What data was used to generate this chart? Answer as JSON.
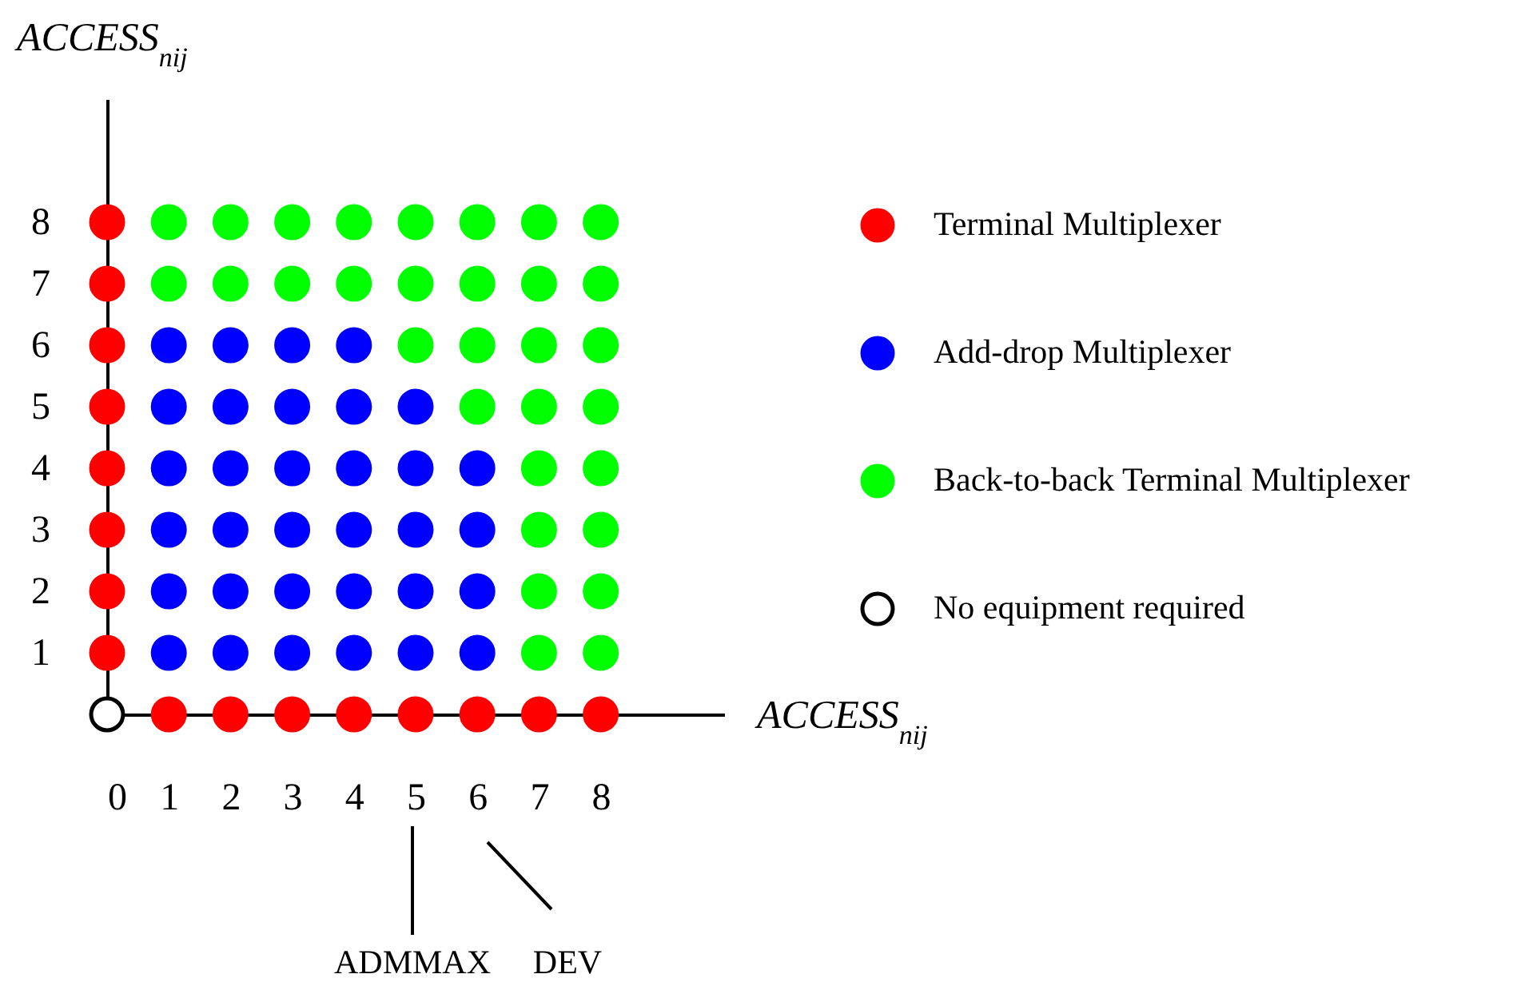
{
  "chart_data": {
    "type": "scatter",
    "xlabel": "ACCESS$_{nij}$",
    "ylabel": "ACCESS$_{nij}$",
    "xlim": [
      0,
      10
    ],
    "ylim": [
      0,
      10
    ],
    "xticks": [
      0,
      1,
      2,
      3,
      4,
      5,
      6,
      7,
      8
    ],
    "yticks": [
      {
        "value": 0,
        "label": null
      },
      1,
      2,
      3,
      4,
      5,
      6,
      7,
      8
    ],
    "marker": "circle",
    "legend": "right",
    "annotations": [
      "ADMMAX",
      "DEV"
    ],
    "series": [
      {
        "name": "Terminal Multiplexer",
        "color": "#ff0000",
        "x": [
          0,
          0,
          0,
          0,
          0,
          0,
          0,
          0,
          1,
          2,
          3,
          4,
          5,
          6,
          7,
          8
        ],
        "values": [
          1,
          2,
          3,
          4,
          5,
          6,
          7,
          8,
          0,
          0,
          0,
          0,
          0,
          0,
          0,
          0
        ]
      },
      {
        "name": "Add-drop Multiplexer",
        "color": "#0000ff",
        "x": [
          1,
          2,
          3,
          4,
          5,
          6,
          1,
          2,
          3,
          4,
          5,
          6,
          1,
          2,
          3,
          4,
          5,
          6,
          1,
          2,
          3,
          4,
          5,
          6,
          1,
          2,
          3,
          4,
          5,
          1,
          2,
          3,
          4
        ],
        "values": [
          1,
          1,
          1,
          1,
          1,
          1,
          2,
          2,
          2,
          2,
          2,
          2,
          3,
          3,
          3,
          3,
          3,
          3,
          4,
          4,
          4,
          4,
          4,
          4,
          5,
          5,
          5,
          5,
          5,
          6,
          6,
          6,
          6
        ]
      },
      {
        "name": "Back-to-back Terminal Multiplexer",
        "color": "#00ff00",
        "x": [
          7,
          8,
          7,
          8,
          7,
          8,
          7,
          8,
          6,
          7,
          8,
          5,
          6,
          7,
          8,
          1,
          2,
          3,
          4,
          5,
          6,
          7,
          8,
          1,
          2,
          3,
          4,
          5,
          6,
          7,
          8
        ],
        "values": [
          1,
          1,
          2,
          2,
          3,
          3,
          4,
          4,
          5,
          5,
          5,
          6,
          6,
          6,
          6,
          7,
          7,
          7,
          7,
          7,
          7,
          7,
          7,
          8,
          8,
          8,
          8,
          8,
          8,
          8,
          8
        ]
      },
      {
        "name": "No equipment required",
        "color": "#ffffff",
        "x": [
          0
        ],
        "values": [
          0
        ]
      }
    ]
  }
}
